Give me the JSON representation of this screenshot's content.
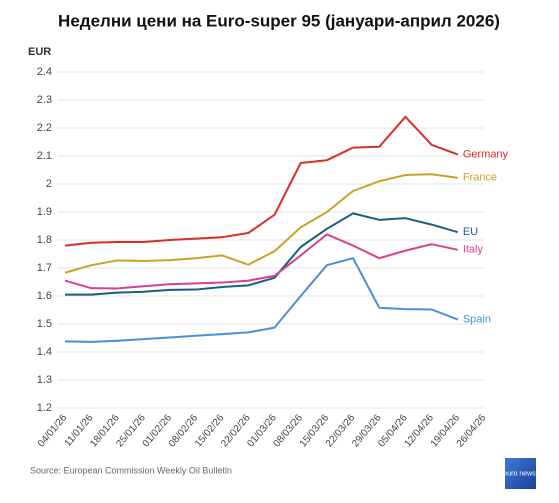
{
  "chart_data": {
    "type": "line",
    "title": "Неделни цени на Euro-super 95 (јануари-април 2026)",
    "y_label": "EUR",
    "source": "Source: European Commission Weekly Oil Bulletin",
    "logo": "euro news.",
    "categories": [
      "04/01/26",
      "11/01/26",
      "18/01/26",
      "25/01/26",
      "01/02/26",
      "08/02/26",
      "15/02/26",
      "22/02/26",
      "01/03/26",
      "08/03/26",
      "15/03/26",
      "22/03/26",
      "29/03/26",
      "05/04/26",
      "12/04/26",
      "19/04/26",
      "26/04/26"
    ],
    "ylim": [
      1.2,
      2.4
    ],
    "yticks": [
      1.2,
      1.3,
      1.4,
      1.5,
      1.6,
      1.7,
      1.8,
      1.9,
      2,
      2.1,
      2.2,
      2.3,
      2.4
    ],
    "grid": true,
    "series": [
      {
        "name": "Germany",
        "color": "#d62f2a",
        "values": [
          1.78,
          1.79,
          1.793,
          1.793,
          1.8,
          1.805,
          1.81,
          1.825,
          1.89,
          2.075,
          2.085,
          2.13,
          2.133,
          2.24,
          2.14,
          2.105,
          null
        ]
      },
      {
        "name": "France",
        "color": "#c9a227",
        "values": [
          1.683,
          1.71,
          1.727,
          1.725,
          1.728,
          1.735,
          1.745,
          1.712,
          1.76,
          1.845,
          1.9,
          1.975,
          2.01,
          2.032,
          2.035,
          2.022,
          null
        ]
      },
      {
        "name": "EU",
        "color": "#1b5f80",
        "values": [
          1.605,
          1.605,
          1.612,
          1.615,
          1.622,
          1.623,
          1.632,
          1.638,
          1.665,
          1.775,
          1.84,
          1.895,
          1.872,
          1.878,
          1.855,
          1.828,
          null
        ]
      },
      {
        "name": "Italy",
        "color": "#d6418e",
        "values": [
          1.655,
          1.628,
          1.627,
          1.635,
          1.642,
          1.645,
          1.648,
          1.655,
          1.672,
          1.745,
          1.82,
          1.78,
          1.735,
          1.762,
          1.785,
          1.765,
          null
        ]
      },
      {
        "name": "Spain",
        "color": "#4a90d9",
        "values": [
          1.438,
          1.436,
          1.44,
          1.446,
          1.452,
          1.458,
          1.464,
          1.47,
          1.487,
          1.6,
          1.71,
          1.735,
          1.558,
          1.553,
          1.552,
          1.516,
          null
        ]
      }
    ]
  }
}
